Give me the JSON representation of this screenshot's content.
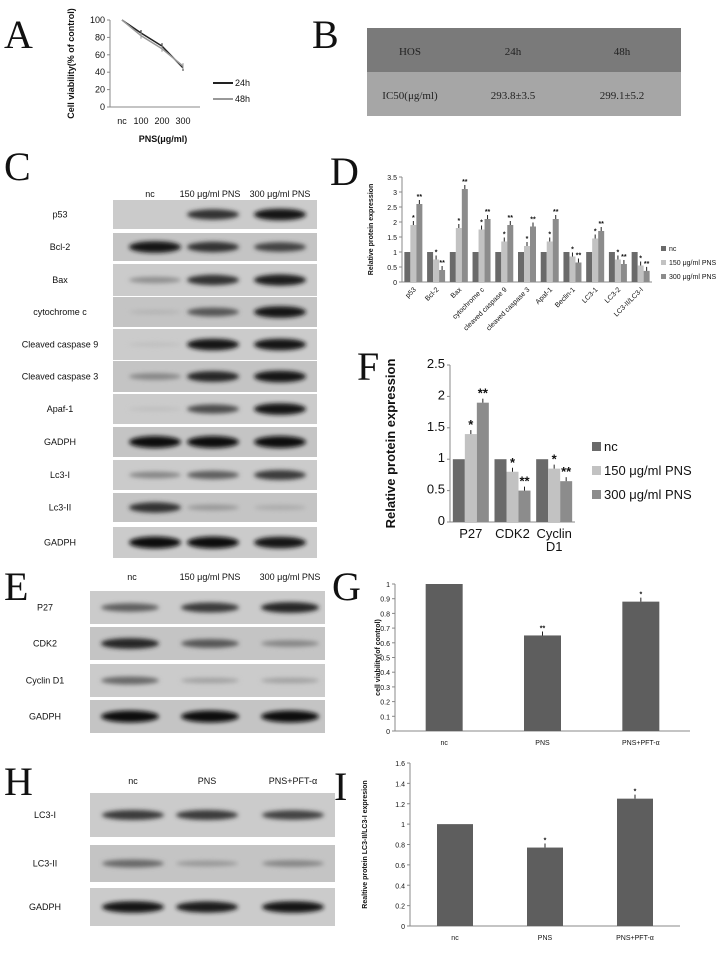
{
  "panels": {
    "A": "A",
    "B": "B",
    "C": "C",
    "D": "D",
    "E": "E",
    "F": "F",
    "G": "G",
    "H": "H",
    "I": "I"
  },
  "table_b": {
    "header": [
      "HOS",
      "24h",
      "48h"
    ],
    "row": [
      "IC50(μg/ml)",
      "293.8±3.5",
      "299.1±5.2"
    ],
    "colors": {
      "header_bg": "#7a7a7a",
      "row_bg": "#a6a6a6"
    }
  },
  "blot_c": {
    "lanes": [
      "nc",
      "150 μg/ml  PNS",
      "300 μg/ml  PNS"
    ],
    "rows": [
      {
        "label": "p53",
        "intensity": [
          0,
          0.8,
          0.95
        ]
      },
      {
        "label": "Bcl-2",
        "intensity": [
          0.95,
          0.8,
          0.7
        ]
      },
      {
        "label": "Bax",
        "intensity": [
          0.3,
          0.8,
          0.9
        ]
      },
      {
        "label": "cytochrome c",
        "intensity": [
          0.1,
          0.6,
          0.95
        ]
      },
      {
        "label": "Cleaved caspase 9",
        "intensity": [
          0.05,
          0.95,
          0.95
        ]
      },
      {
        "label": "Cleaved caspase 3",
        "intensity": [
          0.35,
          0.85,
          0.95
        ]
      },
      {
        "label": "Apaf-1",
        "intensity": [
          0.05,
          0.65,
          0.95
        ]
      },
      {
        "label": "GADPH",
        "intensity": [
          1,
          1,
          1
        ]
      },
      {
        "label": "Lc3-I",
        "intensity": [
          0.35,
          0.55,
          0.75
        ]
      },
      {
        "label": "Lc3-II",
        "intensity": [
          0.8,
          0.25,
          0.15
        ]
      },
      {
        "label": "GADPH",
        "intensity": [
          1,
          1,
          0.95
        ]
      }
    ]
  },
  "blot_e": {
    "lanes": [
      "nc",
      "150 μg/ml  PNS",
      "300 μg/ml  PNS"
    ],
    "rows": [
      {
        "label": "P27",
        "intensity": [
          0.55,
          0.75,
          0.85
        ]
      },
      {
        "label": "CDK2",
        "intensity": [
          0.85,
          0.6,
          0.35
        ]
      },
      {
        "label": "Cyclin  D1",
        "intensity": [
          0.5,
          0.2,
          0.2
        ]
      },
      {
        "label": "GADPH",
        "intensity": [
          1,
          1,
          1
        ]
      }
    ]
  },
  "blot_h": {
    "lanes": [
      "nc",
      "PNS",
      "PNS+PFT-α"
    ],
    "rows": [
      {
        "label": "LC3-I",
        "intensity": [
          0.75,
          0.75,
          0.7
        ]
      },
      {
        "label": "LC3-II",
        "intensity": [
          0.5,
          0.25,
          0.35
        ]
      },
      {
        "label": "GADPH",
        "intensity": [
          0.95,
          0.9,
          0.95
        ]
      }
    ]
  },
  "chart_data": [
    {
      "id": "A",
      "type": "line",
      "categories": [
        "nc",
        "100",
        "200",
        "300"
      ],
      "series": [
        {
          "name": "24h",
          "values": [
            100,
            85,
            70,
            45
          ],
          "color": "#222222"
        },
        {
          "name": "48h",
          "values": [
            100,
            82,
            67,
            47
          ],
          "color": "#999999"
        }
      ],
      "xlabel": "PNS(μg/ml)",
      "ylabel": "Cell viability(% of control)",
      "ylim": [
        0,
        100
      ],
      "yticks": [
        "0",
        "20",
        "40",
        "60",
        "80",
        "100"
      ],
      "legend": "right",
      "grid": false
    },
    {
      "id": "D",
      "type": "bar",
      "categories": [
        "p53",
        "Bcl-2",
        "Bax",
        "cytochrome c",
        "cleaved caspase 9",
        "cleaved caspase 3",
        "Apaf-1",
        "Beclin-1",
        "LC3-1",
        "LC3-2",
        "LC3-II/LC3-I"
      ],
      "series": [
        {
          "name": "nc",
          "values": [
            1,
            1,
            1,
            1,
            1,
            1,
            1,
            1,
            1,
            1,
            1
          ],
          "color": "#6a6a6a"
        },
        {
          "name": "150 μg/ml PNS",
          "values": [
            1.9,
            0.75,
            1.8,
            1.75,
            1.35,
            1.2,
            1.35,
            0.85,
            1.45,
            0.75,
            0.55
          ],
          "color": "#c2c2c2"
        },
        {
          "name": "300 μg/ml PNS",
          "values": [
            2.6,
            0.4,
            3.1,
            2.1,
            1.9,
            1.85,
            2.1,
            0.65,
            1.7,
            0.6,
            0.37
          ],
          "color": "#8c8c8c"
        }
      ],
      "stars": [
        [
          "",
          "*",
          "**"
        ],
        [
          "",
          "*",
          "**"
        ],
        [
          "",
          "*",
          "**"
        ],
        [
          "",
          "*",
          "**"
        ],
        [
          "",
          "*",
          "**"
        ],
        [
          "",
          "*",
          "**"
        ],
        [
          "",
          "*",
          "**"
        ],
        [
          "",
          "*",
          "**"
        ],
        [
          "",
          "*",
          "**"
        ],
        [
          "",
          "*",
          "**"
        ],
        [
          "",
          "*",
          "**"
        ]
      ],
      "ylabel": "Relative protein expression",
      "ylim": [
        0,
        3.5
      ],
      "yticks": [
        "0",
        "0.5",
        "1",
        "1.5",
        "2",
        "2.5",
        "3",
        "3.5"
      ],
      "legend": "right",
      "grid": false
    },
    {
      "id": "F",
      "type": "bar",
      "categories": [
        "P27",
        "CDK2",
        "Cyclin D1"
      ],
      "series": [
        {
          "name": "nc",
          "values": [
            1,
            1,
            1
          ],
          "color": "#6a6a6a"
        },
        {
          "name": "150 μg/ml PNS",
          "values": [
            1.4,
            0.8,
            0.85
          ],
          "color": "#c2c2c2"
        },
        {
          "name": "300 μg/ml PNS",
          "values": [
            1.9,
            0.5,
            0.65
          ],
          "color": "#8c8c8c"
        }
      ],
      "stars": [
        [
          "",
          "*",
          "**"
        ],
        [
          "",
          "*",
          "**"
        ],
        [
          "",
          "*",
          "**"
        ]
      ],
      "ylabel": "Relative protein expression",
      "ylim": [
        0,
        2.5
      ],
      "yticks": [
        "0",
        "0.5",
        "1",
        "1.5",
        "2",
        "2.5"
      ],
      "legend": "right",
      "grid": false
    },
    {
      "id": "G",
      "type": "bar",
      "categories": [
        "nc",
        "PNS",
        "PNS+PFT-α"
      ],
      "series": [
        {
          "values": [
            1,
            0.65,
            0.88
          ],
          "color": "#5e5e5e"
        }
      ],
      "stars": [
        [
          ""
        ],
        [
          "**"
        ],
        [
          "*"
        ]
      ],
      "ylabel": "cell viability(of control)",
      "ylim": [
        0,
        1
      ],
      "yticks": [
        "0",
        "0.1",
        "0.2",
        "0.3",
        "0.4",
        "0.5",
        "0.6",
        "0.7",
        "0.8",
        "0.9",
        "1"
      ],
      "grid": false
    },
    {
      "id": "I",
      "type": "bar",
      "categories": [
        "nc",
        "PNS",
        "PNS+PFT-α"
      ],
      "series": [
        {
          "values": [
            1,
            0.77,
            1.25
          ],
          "color": "#5e5e5e"
        }
      ],
      "stars": [
        [
          ""
        ],
        [
          "*"
        ],
        [
          "*"
        ]
      ],
      "ylabel": "Realtive protein LC3-II/LC3-I expresion",
      "ylim": [
        0,
        1.6
      ],
      "yticks": [
        "0",
        "0.2",
        "0.4",
        "0.6",
        "0.8",
        "1",
        "1.2",
        "1.4",
        "1.6"
      ],
      "grid": false
    }
  ]
}
